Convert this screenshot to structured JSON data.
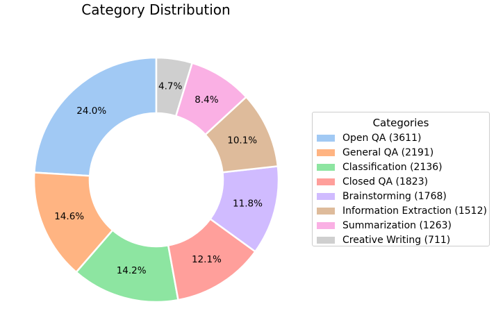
{
  "chart_data": {
    "type": "pie",
    "title": "Category Distribution",
    "legend_title": "Categories",
    "legend_position": "right",
    "donut": true,
    "start_angle": 90,
    "direction": "counterclockwise",
    "categories": [
      "Open QA",
      "General QA",
      "Classification",
      "Closed QA",
      "Brainstorming",
      "Information Extraction",
      "Summarization",
      "Creative Writing"
    ],
    "values": [
      3611,
      2191,
      2136,
      1823,
      1768,
      1512,
      1263,
      711
    ],
    "percent_labels": [
      "24.0%",
      "14.6%",
      "14.2%",
      "12.1%",
      "11.8%",
      "10.1%",
      "8.4%",
      "4.7%"
    ],
    "legend_labels": [
      "Open QA (3611)",
      "General QA (2191)",
      "Classification (2136)",
      "Closed QA (1823)",
      "Brainstorming (1768)",
      "Information Extraction (1512)",
      "Summarization (1263)",
      "Creative Writing (711)"
    ],
    "colors": [
      "#a1c9f4",
      "#ffb482",
      "#8de5a1",
      "#ff9f9b",
      "#d0bbff",
      "#debb9b",
      "#fab0e4",
      "#cfcfcf"
    ]
  }
}
